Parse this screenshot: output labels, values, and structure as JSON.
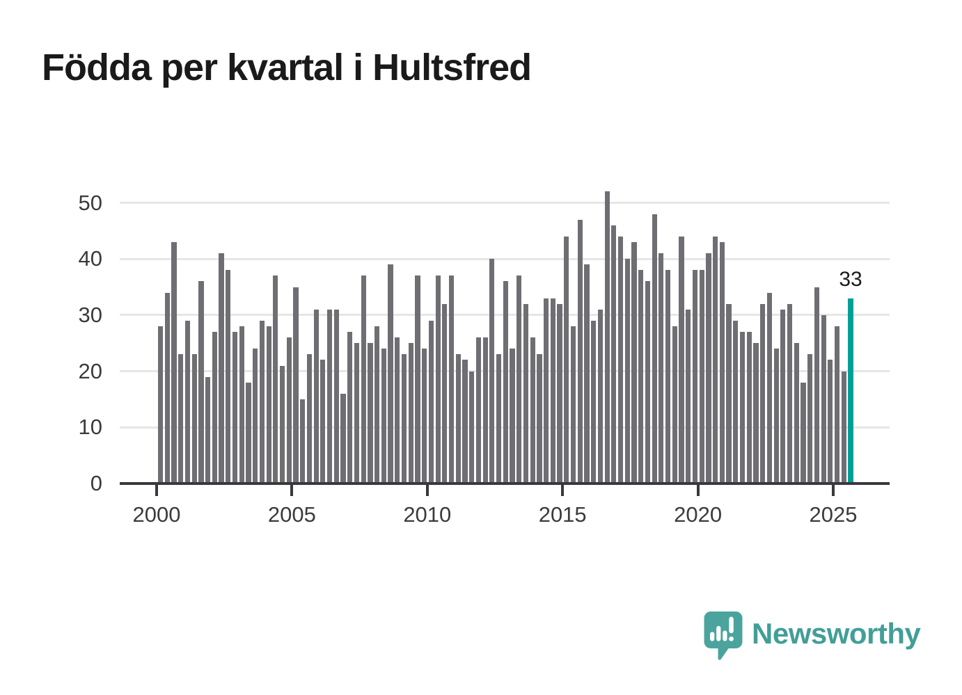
{
  "title": "Födda per kvartal i Hultsfred",
  "annotation": {
    "last_value_label": "33"
  },
  "branding": {
    "wordmark": "Newsworthy",
    "icon": "newsworthy-speech-bubble-chart-icon"
  },
  "colors": {
    "bar": "#6e6e73",
    "highlight": "#00a098",
    "axis": "#38383d",
    "grid": "#e6e6e6",
    "tick_label": "#3b3b3b",
    "title": "#1a1a1a",
    "logo": "#429e98"
  },
  "chart_data": {
    "type": "bar",
    "title": "Födda per kvartal i Hultsfred",
    "xlabel": "",
    "ylabel": "",
    "x_tick_labels": [
      "2000",
      "2005",
      "2010",
      "2015",
      "2020",
      "2025"
    ],
    "y_tick_labels": [
      "0",
      "10",
      "20",
      "30",
      "40",
      "50"
    ],
    "ylim": [
      0,
      52
    ],
    "grid": true,
    "legend": false,
    "first_period": "2000 Q1",
    "last_period": "2025 Q3",
    "periods_per_year": 4,
    "highlight_last_bar": true,
    "last_bar_label": "33",
    "series": [
      {
        "name": "Födda per kvartal",
        "values": [
          28,
          34,
          43,
          23,
          29,
          23,
          36,
          19,
          27,
          41,
          38,
          27,
          28,
          18,
          24,
          29,
          28,
          37,
          21,
          26,
          35,
          15,
          23,
          31,
          22,
          31,
          31,
          16,
          27,
          25,
          37,
          25,
          28,
          24,
          39,
          26,
          23,
          25,
          37,
          24,
          29,
          37,
          32,
          37,
          23,
          22,
          20,
          26,
          26,
          40,
          23,
          36,
          24,
          37,
          32,
          26,
          23,
          33,
          33,
          32,
          44,
          28,
          47,
          39,
          29,
          31,
          52,
          46,
          44,
          40,
          43,
          38,
          36,
          48,
          41,
          38,
          28,
          44,
          31,
          38,
          38,
          41,
          44,
          43,
          32,
          29,
          27,
          27,
          25,
          32,
          34,
          24,
          31,
          32,
          25,
          18,
          23,
          35,
          30,
          22,
          28,
          20,
          33
        ]
      }
    ]
  }
}
